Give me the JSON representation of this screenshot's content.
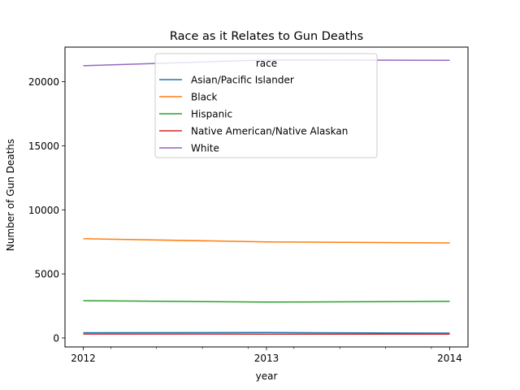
{
  "chart_data": {
    "type": "line",
    "title": "Race as it Relates to Gun Deaths",
    "xlabel": "year",
    "ylabel": "Number of Gun Deaths",
    "x": [
      2012,
      2013,
      2014
    ],
    "xticks": [
      2012,
      2013,
      2014
    ],
    "yticks": [
      0,
      5000,
      10000,
      15000,
      20000
    ],
    "ytick_labels": [
      "0",
      "5000",
      "10000",
      "15000",
      "20000"
    ],
    "xlim": [
      2011.9,
      2014.1
    ],
    "ylim": [
      -700,
      22700
    ],
    "legend": {
      "title": "race",
      "position": "upper center"
    },
    "grid": false,
    "series": [
      {
        "name": "Asian/Pacific Islander",
        "color": "#1f77b4",
        "values": [
          410,
          420,
          380
        ]
      },
      {
        "name": "Black",
        "color": "#ff7f0e",
        "values": [
          7750,
          7500,
          7420
        ]
      },
      {
        "name": "Hispanic",
        "color": "#2ca02c",
        "values": [
          2910,
          2800,
          2860
        ]
      },
      {
        "name": "Native American/Native Alaskan",
        "color": "#d62728",
        "values": [
          310,
          300,
          300
        ]
      },
      {
        "name": "White",
        "color": "#9467bd",
        "values": [
          21250,
          21700,
          21670
        ]
      }
    ]
  }
}
